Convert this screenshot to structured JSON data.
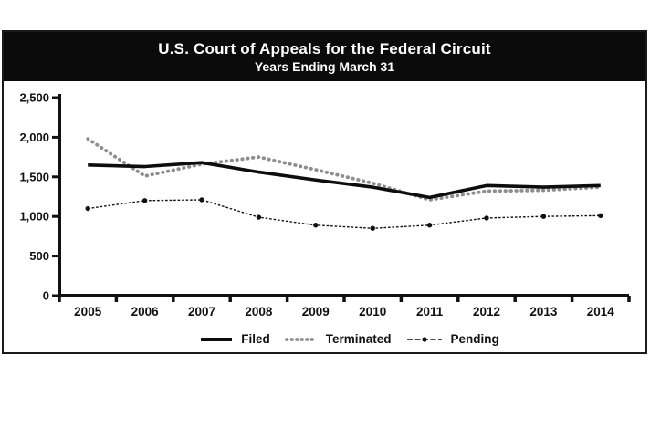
{
  "header": {
    "title": "U.S. Court of Appeals for the Federal Circuit",
    "subtitle": "Years Ending March 31"
  },
  "chart_data": {
    "type": "line",
    "title": "U.S. Court of Appeals for the Federal Circuit",
    "subtitle": "Years Ending March 31",
    "categories": [
      "2005",
      "2006",
      "2007",
      "2008",
      "2009",
      "2010",
      "2011",
      "2012",
      "2013",
      "2014"
    ],
    "series": [
      {
        "name": "Filed",
        "style": "solid",
        "color": "#0d0d0d",
        "values": [
          1650,
          1630,
          1680,
          1560,
          1460,
          1370,
          1240,
          1390,
          1370,
          1390
        ]
      },
      {
        "name": "Terminated",
        "style": "dotted",
        "color": "#8e8e8e",
        "values": [
          1980,
          1510,
          1660,
          1750,
          1590,
          1420,
          1210,
          1320,
          1330,
          1370
        ]
      },
      {
        "name": "Pending",
        "style": "dash-dot-marker",
        "color": "#111111",
        "values": [
          1100,
          1200,
          1210,
          990,
          890,
          850,
          890,
          980,
          1000,
          1010
        ]
      }
    ],
    "ylim": [
      0,
      2500
    ],
    "ytick_interval": 500,
    "ytick_labels": [
      "0",
      "500",
      "1,000",
      "1,500",
      "2,000",
      "2,500"
    ],
    "xlabel": "",
    "ylabel": "",
    "grid": false,
    "legend_position": "bottom"
  },
  "colors": {
    "title_bar_bg": "#0b0b0b",
    "title_text": "#ffffff",
    "axis": "#111111",
    "border": "#1a1a1a",
    "background": "#ffffff"
  }
}
